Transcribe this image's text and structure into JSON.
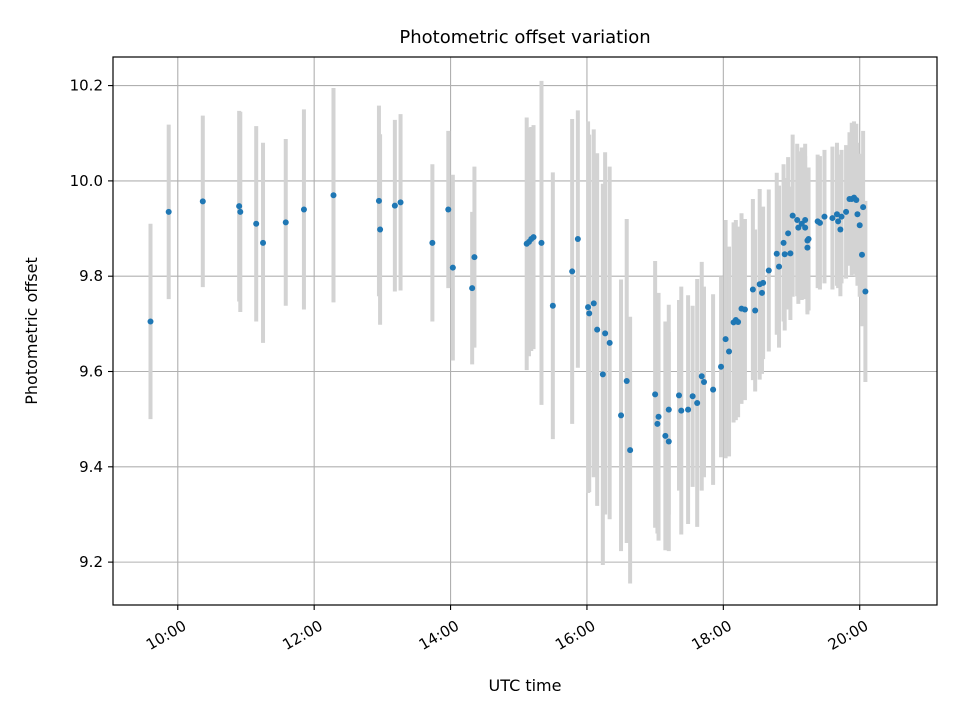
{
  "chart_data": {
    "type": "scatter",
    "title": "Photometric offset variation",
    "xlabel": "UTC time",
    "ylabel": "Photometric offset",
    "x_ticks": [
      "10:00",
      "12:00",
      "14:00",
      "16:00",
      "18:00",
      "20:00"
    ],
    "y_ticks": [
      "9.2",
      "9.4",
      "9.6",
      "9.8",
      "10.0",
      "10.2"
    ],
    "xlim": [
      "09:03",
      "21:08"
    ],
    "ylim": [
      9.11,
      10.26
    ],
    "grid": true,
    "legend": "none",
    "colors": {
      "point": "#1f77b4",
      "errorbar": "#d3d3d3",
      "grid": "#b0b0b0"
    },
    "series": [
      {
        "points": [
          {
            "x": "09:36",
            "y": 9.705,
            "err": 0.205
          },
          {
            "x": "09:52",
            "y": 9.935,
            "err": 0.183
          },
          {
            "x": "10:22",
            "y": 9.957,
            "err": 0.18
          },
          {
            "x": "10:54",
            "y": 9.947,
            "err": 0.2
          },
          {
            "x": "10:55",
            "y": 9.935,
            "err": 0.21
          },
          {
            "x": "11:09",
            "y": 9.91,
            "err": 0.205
          },
          {
            "x": "11:15",
            "y": 9.87,
            "err": 0.21
          },
          {
            "x": "11:35",
            "y": 9.913,
            "err": 0.175
          },
          {
            "x": "11:51",
            "y": 9.94,
            "err": 0.21
          },
          {
            "x": "12:17",
            "y": 9.97,
            "err": 0.225
          },
          {
            "x": "12:57",
            "y": 9.958,
            "err": 0.2
          },
          {
            "x": "12:58",
            "y": 9.898,
            "err": 0.2
          },
          {
            "x": "13:11",
            "y": 9.948,
            "err": 0.18
          },
          {
            "x": "13:16",
            "y": 9.955,
            "err": 0.185
          },
          {
            "x": "13:44",
            "y": 9.87,
            "err": 0.165
          },
          {
            "x": "13:58",
            "y": 9.94,
            "err": 0.165
          },
          {
            "x": "14:02",
            "y": 9.818,
            "err": 0.195
          },
          {
            "x": "14:19",
            "y": 9.775,
            "err": 0.16
          },
          {
            "x": "14:21",
            "y": 9.84,
            "err": 0.19
          },
          {
            "x": "15:07",
            "y": 9.868,
            "err": 0.265
          },
          {
            "x": "15:09",
            "y": 9.872,
            "err": 0.24
          },
          {
            "x": "15:11",
            "y": 9.878,
            "err": 0.235
          },
          {
            "x": "15:13",
            "y": 9.882,
            "err": 0.235
          },
          {
            "x": "15:20",
            "y": 9.87,
            "err": 0.34
          },
          {
            "x": "15:30",
            "y": 9.738,
            "err": 0.28
          },
          {
            "x": "15:47",
            "y": 9.81,
            "err": 0.32
          },
          {
            "x": "15:52",
            "y": 9.878,
            "err": 0.27
          },
          {
            "x": "16:01",
            "y": 9.735,
            "err": 0.39
          },
          {
            "x": "16:02",
            "y": 9.722,
            "err": 0.375
          },
          {
            "x": "16:06",
            "y": 9.743,
            "err": 0.365
          },
          {
            "x": "16:09",
            "y": 9.688,
            "err": 0.37
          },
          {
            "x": "16:14",
            "y": 9.594,
            "err": 0.4
          },
          {
            "x": "16:16",
            "y": 9.68,
            "err": 0.38
          },
          {
            "x": "16:20",
            "y": 9.66,
            "err": 0.37
          },
          {
            "x": "16:30",
            "y": 9.508,
            "err": 0.285
          },
          {
            "x": "16:35",
            "y": 9.58,
            "err": 0.34
          },
          {
            "x": "16:38",
            "y": 9.435,
            "err": 0.28
          },
          {
            "x": "17:00",
            "y": 9.552,
            "err": 0.28
          },
          {
            "x": "17:02",
            "y": 9.49,
            "err": 0.23
          },
          {
            "x": "17:03",
            "y": 9.505,
            "err": 0.26
          },
          {
            "x": "17:09",
            "y": 9.465,
            "err": 0.24
          },
          {
            "x": "17:12",
            "y": 9.453,
            "err": 0.23
          },
          {
            "x": "17:12",
            "y": 9.52,
            "err": 0.22
          },
          {
            "x": "17:21",
            "y": 9.55,
            "err": 0.2
          },
          {
            "x": "17:23",
            "y": 9.518,
            "err": 0.26
          },
          {
            "x": "17:29",
            "y": 9.52,
            "err": 0.24
          },
          {
            "x": "17:33",
            "y": 9.548,
            "err": 0.19
          },
          {
            "x": "17:37",
            "y": 9.534,
            "err": 0.26
          },
          {
            "x": "17:41",
            "y": 9.59,
            "err": 0.24
          },
          {
            "x": "17:43",
            "y": 9.578,
            "err": 0.2
          },
          {
            "x": "17:51",
            "y": 9.562,
            "err": 0.2
          },
          {
            "x": "17:58",
            "y": 9.61,
            "err": 0.19
          },
          {
            "x": "18:02",
            "y": 9.668,
            "err": 0.25
          },
          {
            "x": "18:05",
            "y": 9.642,
            "err": 0.22
          },
          {
            "x": "18:09",
            "y": 9.703,
            "err": 0.21
          },
          {
            "x": "18:11",
            "y": 9.708,
            "err": 0.21
          },
          {
            "x": "18:13",
            "y": 9.704,
            "err": 0.2
          },
          {
            "x": "18:16",
            "y": 9.732,
            "err": 0.2
          },
          {
            "x": "18:19",
            "y": 9.73,
            "err": 0.19
          },
          {
            "x": "18:26",
            "y": 9.772,
            "err": 0.19
          },
          {
            "x": "18:28",
            "y": 9.728,
            "err": 0.17
          },
          {
            "x": "18:32",
            "y": 9.783,
            "err": 0.2
          },
          {
            "x": "18:35",
            "y": 9.786,
            "err": 0.16
          },
          {
            "x": "18:34",
            "y": 9.765,
            "err": 0.17
          },
          {
            "x": "18:40",
            "y": 9.812,
            "err": 0.17
          },
          {
            "x": "18:47",
            "y": 9.847,
            "err": 0.17
          },
          {
            "x": "18:49",
            "y": 9.82,
            "err": 0.17
          },
          {
            "x": "18:53",
            "y": 9.87,
            "err": 0.165
          },
          {
            "x": "18:54",
            "y": 9.846,
            "err": 0.16
          },
          {
            "x": "18:57",
            "y": 9.89,
            "err": 0.16
          },
          {
            "x": "18:59",
            "y": 9.848,
            "err": 0.14
          },
          {
            "x": "19:01",
            "y": 9.927,
            "err": 0.17
          },
          {
            "x": "19:05",
            "y": 9.918,
            "err": 0.16
          },
          {
            "x": "19:06",
            "y": 9.902,
            "err": 0.16
          },
          {
            "x": "19:09",
            "y": 9.91,
            "err": 0.16
          },
          {
            "x": "19:12",
            "y": 9.918,
            "err": 0.16
          },
          {
            "x": "19:12",
            "y": 9.902,
            "err": 0.15
          },
          {
            "x": "19:14",
            "y": 9.86,
            "err": 0.14
          },
          {
            "x": "19:14",
            "y": 9.875,
            "err": 0.15
          },
          {
            "x": "19:15",
            "y": 9.878,
            "err": 0.15
          },
          {
            "x": "19:23",
            "y": 9.915,
            "err": 0.14
          },
          {
            "x": "19:25",
            "y": 9.912,
            "err": 0.14
          },
          {
            "x": "19:29",
            "y": 9.925,
            "err": 0.14
          },
          {
            "x": "19:36",
            "y": 9.922,
            "err": 0.15
          },
          {
            "x": "19:40",
            "y": 9.93,
            "err": 0.15
          },
          {
            "x": "19:41",
            "y": 9.915,
            "err": 0.14
          },
          {
            "x": "19:43",
            "y": 9.898,
            "err": 0.14
          },
          {
            "x": "19:44",
            "y": 9.925,
            "err": 0.14
          },
          {
            "x": "19:48",
            "y": 9.935,
            "err": 0.14
          },
          {
            "x": "19:51",
            "y": 9.962,
            "err": 0.14
          },
          {
            "x": "19:53",
            "y": 9.962,
            "err": 0.16
          },
          {
            "x": "19:55",
            "y": 9.965,
            "err": 0.16
          },
          {
            "x": "19:57",
            "y": 9.96,
            "err": 0.16
          },
          {
            "x": "19:58",
            "y": 9.93,
            "err": 0.15
          },
          {
            "x": "20:00",
            "y": 9.907,
            "err": 0.15
          },
          {
            "x": "20:02",
            "y": 9.845,
            "err": 0.15
          },
          {
            "x": "20:03",
            "y": 9.945,
            "err": 0.16
          },
          {
            "x": "20:05",
            "y": 9.768,
            "err": 0.19
          }
        ]
      }
    ]
  }
}
